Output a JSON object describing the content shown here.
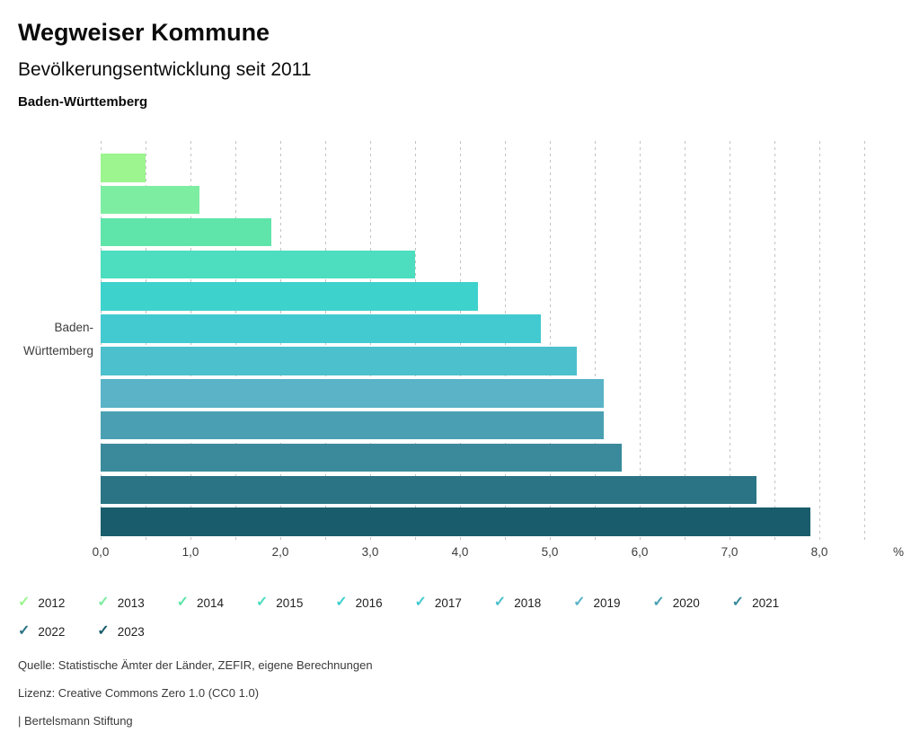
{
  "header": {
    "title": "Wegweiser Kommune",
    "subtitle": "Bevölkerungsentwicklung seit 2011",
    "region": "Baden-Württemberg"
  },
  "chart_data": {
    "type": "bar",
    "orientation": "horizontal",
    "title": "Wegweiser Kommune",
    "subtitle": "Bevölkerungsentwicklung seit 2011",
    "region": "Baden-Württemberg",
    "category_axis_label": "Baden-Württemberg",
    "categories": [
      "2012",
      "2013",
      "2014",
      "2015",
      "2016",
      "2017",
      "2018",
      "2019",
      "2020",
      "2021",
      "2022",
      "2023"
    ],
    "values": [
      0.5,
      1.1,
      1.9,
      3.5,
      4.2,
      4.9,
      5.3,
      5.6,
      5.6,
      5.8,
      7.3,
      7.9
    ],
    "colors": [
      "#9cf58f",
      "#7deda1",
      "#5fe5aa",
      "#4cdebe",
      "#3ed2cd",
      "#43cad1",
      "#4cc0cc",
      "#5ab3c7",
      "#4aa0b2",
      "#3a8a9b",
      "#2a7485",
      "#195d6c"
    ],
    "xlim": [
      0,
      8.5
    ],
    "x_tick_values": [
      0,
      1,
      2,
      3,
      4,
      5,
      6,
      7,
      8
    ],
    "x_tick_labels": [
      "0,0",
      "1,0",
      "2,0",
      "3,0",
      "4,0",
      "5,0",
      "6,0",
      "7,0",
      "8,0"
    ],
    "x_unit": "%",
    "grid": "dashed-vertical",
    "grid_step": 0.5,
    "legend_position": "bottom",
    "legend_check_glyph": "✓"
  },
  "footer": {
    "source": "Quelle: Statistische Ämter der Länder, ZEFIR, eigene Berechnungen",
    "license": "Lizenz: Creative Commons Zero 1.0 (CC0 1.0)",
    "attribution": "| Bertelsmann Stiftung"
  }
}
